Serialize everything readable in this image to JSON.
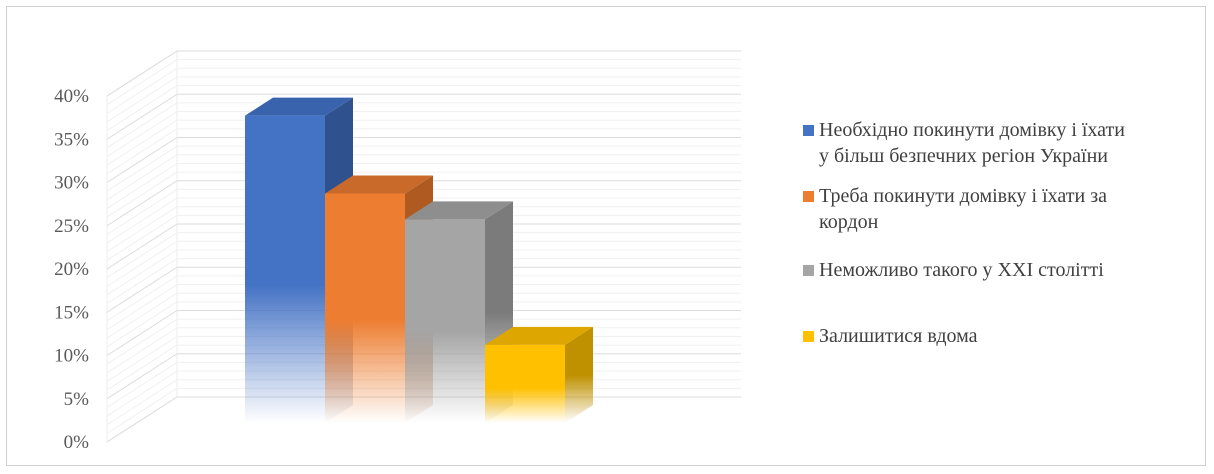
{
  "chart_data": {
    "type": "bar",
    "style": "3d-clustered-column-with-gradient-fade",
    "categories": [
      "Необхідно покинути домівку і їхати у більш безпечних регіон України",
      "Треба покинути домівку і їхати за кордон",
      "Неможливо такого у XXI столітті",
      "Залишитися вдома"
    ],
    "values": [
      0.375,
      0.285,
      0.255,
      0.11
    ],
    "colors": [
      "#4472C4",
      "#ED7D31",
      "#A5A5A5",
      "#FFC000"
    ],
    "side_colors": [
      "#2F528F",
      "#AE5A21",
      "#7B7B7B",
      "#BF9000"
    ],
    "top_colors": [
      "#3A63AD",
      "#C9692A",
      "#8E8E8E",
      "#DDA600"
    ],
    "ylim": [
      0,
      0.4
    ],
    "yticks": [
      "0%",
      "5%",
      "10%",
      "15%",
      "20%",
      "25%",
      "30%",
      "35%",
      "40%"
    ],
    "grid": true,
    "legend_position": "right",
    "title": "",
    "xlabel": "",
    "ylabel": ""
  },
  "legend": {
    "items": [
      {
        "label": "Необхідно покинути домівку і їхати\nу більш безпечних регіон України"
      },
      {
        "label": "Треба покинути домівку і їхати за\nкордон"
      },
      {
        "label": "Неможливо такого у XXI столітті"
      },
      {
        "label": "Залишитися вдома"
      }
    ]
  }
}
